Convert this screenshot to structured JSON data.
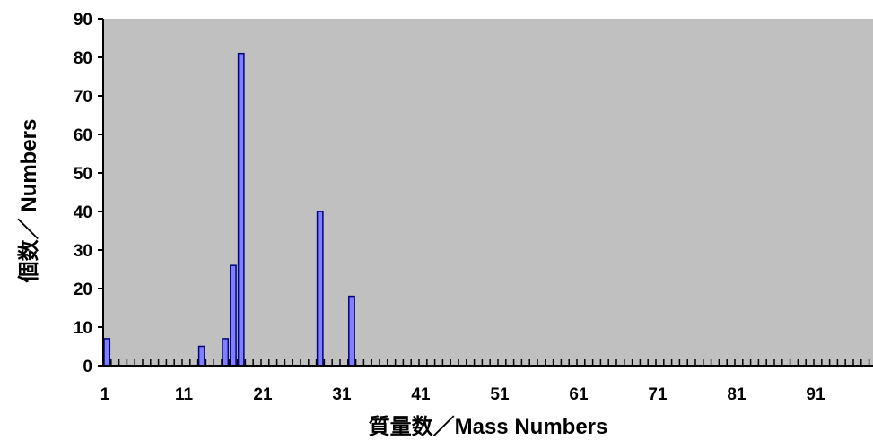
{
  "chart_data": {
    "type": "bar",
    "title": "",
    "xlabel": "質量数／Mass Numbers",
    "ylabel": "個数／ Numbers",
    "xlim": [
      1,
      97
    ],
    "ylim": [
      0,
      90
    ],
    "x_ticks": [
      1,
      11,
      21,
      31,
      41,
      51,
      61,
      71,
      81,
      91
    ],
    "y_ticks": [
      0,
      10,
      20,
      30,
      40,
      50,
      60,
      70,
      80,
      90
    ],
    "x_tick_labels": [
      "1",
      "11",
      "21",
      "31",
      "41",
      "51",
      "61",
      "71",
      "81",
      "91"
    ],
    "y_tick_labels": [
      "0",
      "10",
      "20",
      "30",
      "40",
      "50",
      "60",
      "70",
      "80",
      "90"
    ],
    "grid": false,
    "legend": "none",
    "series": [
      {
        "x": [
          1,
          13,
          16,
          17,
          18,
          28,
          32
        ],
        "values": [
          7,
          5,
          7,
          26,
          81,
          40,
          18
        ]
      }
    ],
    "colors": {
      "plot_background": "#c0c0c0",
      "bar_fill": "#8080ff",
      "bar_stroke": "#000080",
      "axis": "#000000"
    }
  }
}
